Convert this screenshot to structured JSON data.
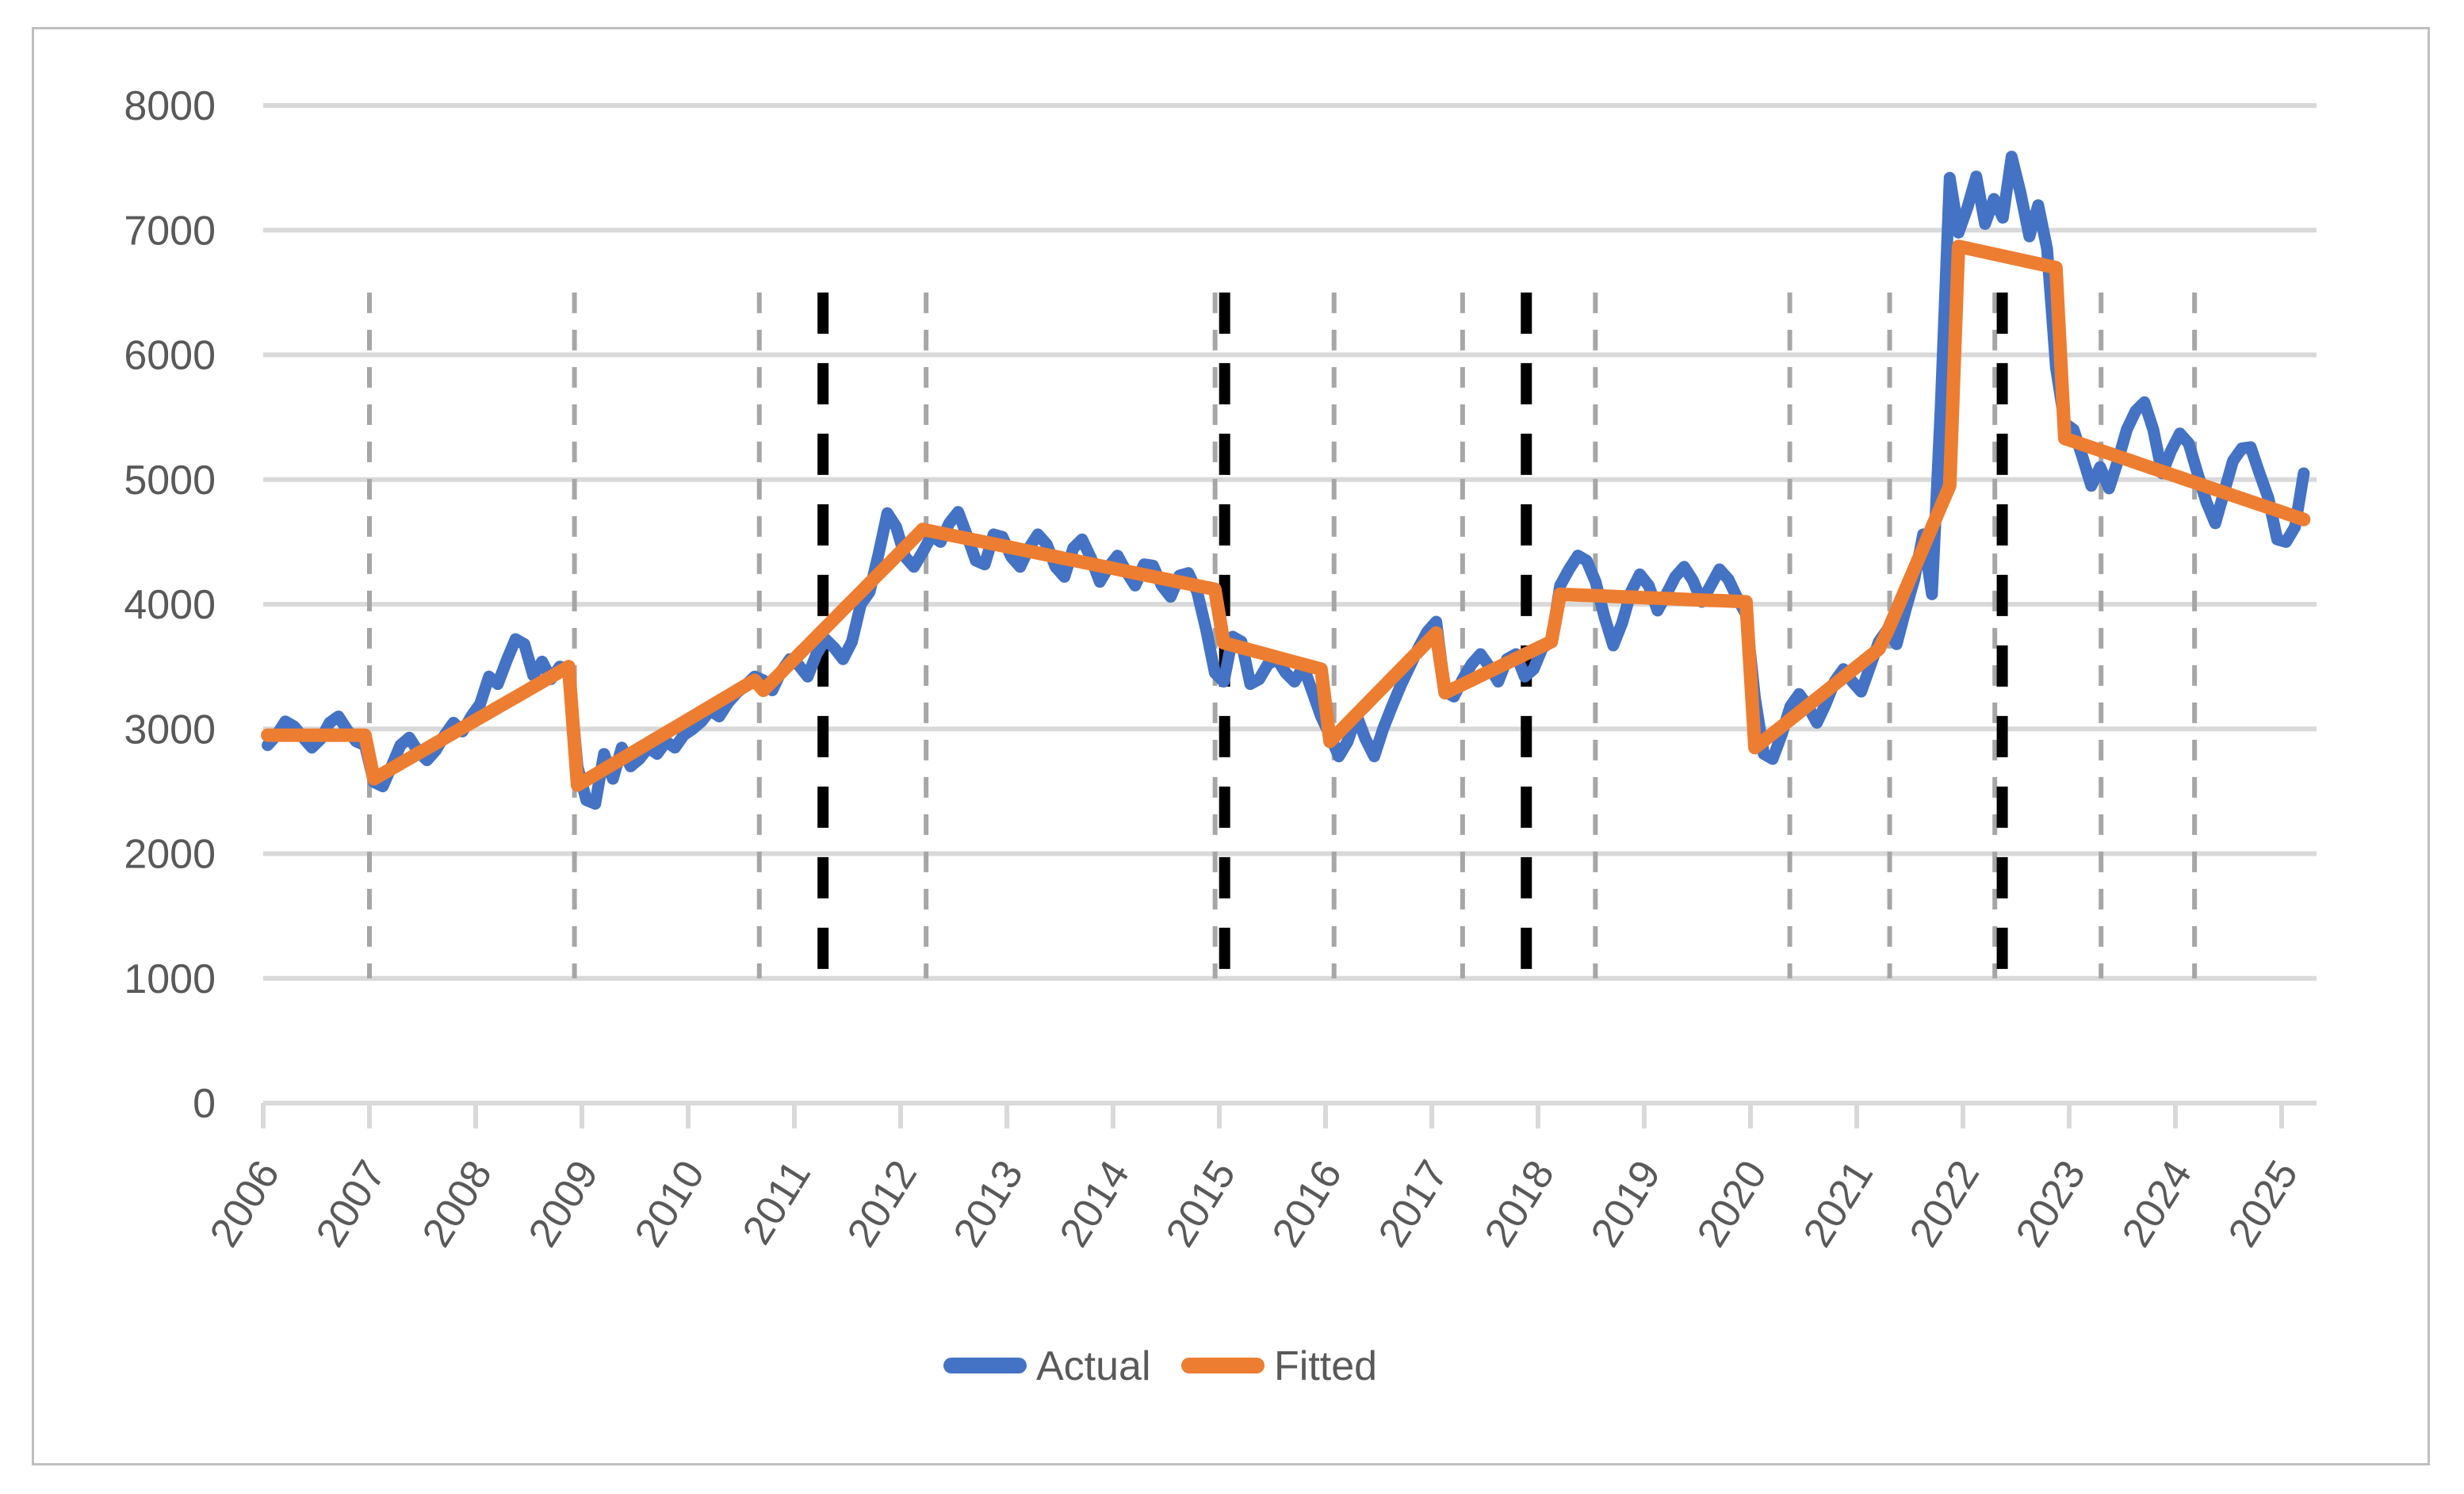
{
  "chart_data": {
    "type": "line",
    "title": "",
    "x_categories": [
      "2006",
      "2007",
      "2008",
      "2009",
      "2010",
      "2011",
      "2012",
      "2013",
      "2014",
      "2015",
      "2016",
      "2017",
      "2018",
      "2019",
      "2020",
      "2021",
      "2022",
      "2023",
      "2024",
      "2025"
    ],
    "x_start_year": 2006,
    "points_per_year": 12,
    "n_points": 231,
    "ylim": [
      0,
      8000
    ],
    "y_ticks": [
      0,
      1000,
      2000,
      3000,
      4000,
      5000,
      6000,
      7000,
      8000
    ],
    "grid": true,
    "legend_position": "bottom",
    "axis_label_color": "#595959",
    "gridline_color": "#d9d9d9",
    "series": [
      {
        "name": "Actual",
        "color": "#4472C4",
        "values": [
          2870,
          2950,
          3060,
          3020,
          2930,
          2850,
          2920,
          3050,
          3100,
          2990,
          2900,
          2870,
          2575,
          2540,
          2700,
          2870,
          2930,
          2820,
          2750,
          2830,
          2950,
          3050,
          2980,
          3100,
          3200,
          3420,
          3360,
          3550,
          3720,
          3680,
          3430,
          3540,
          3400,
          3500,
          3480,
          2700,
          2430,
          2400,
          2800,
          2600,
          2850,
          2700,
          2760,
          2850,
          2800,
          2900,
          2850,
          2950,
          3000,
          3060,
          3150,
          3100,
          3210,
          3290,
          3350,
          3420,
          3390,
          3310,
          3460,
          3560,
          3510,
          3420,
          3600,
          3720,
          3650,
          3560,
          3700,
          4000,
          4100,
          4400,
          4730,
          4620,
          4380,
          4300,
          4420,
          4550,
          4500,
          4650,
          4740,
          4550,
          4350,
          4320,
          4560,
          4540,
          4380,
          4300,
          4450,
          4560,
          4480,
          4300,
          4220,
          4450,
          4520,
          4370,
          4180,
          4300,
          4390,
          4260,
          4150,
          4320,
          4310,
          4150,
          4060,
          4230,
          4250,
          4100,
          3800,
          3450,
          3380,
          3740,
          3700,
          3360,
          3400,
          3520,
          3560,
          3450,
          3380,
          3500,
          3300,
          3100,
          2950,
          2780,
          2900,
          3110,
          2920,
          2780,
          3000,
          3180,
          3350,
          3500,
          3650,
          3780,
          3860,
          3300,
          3260,
          3400,
          3520,
          3600,
          3500,
          3380,
          3560,
          3600,
          3420,
          3480,
          3650,
          3700,
          4150,
          4280,
          4390,
          4350,
          4180,
          3900,
          3670,
          3850,
          4100,
          4240,
          4150,
          3950,
          4080,
          4220,
          4300,
          4190,
          4020,
          4150,
          4280,
          4200,
          4050,
          3920,
          3250,
          2800,
          2760,
          2950,
          3180,
          3280,
          3180,
          3050,
          3200,
          3380,
          3480,
          3380,
          3300,
          3500,
          3700,
          3800,
          3680,
          3950,
          4200,
          4560,
          4080,
          5600,
          7420,
          6980,
          7180,
          7430,
          7050,
          7250,
          7100,
          7590,
          7300,
          6950,
          7200,
          6850,
          5900,
          5450,
          5400,
          5180,
          4950,
          5100,
          4930,
          5150,
          5400,
          5550,
          5620,
          5400,
          5050,
          5230,
          5370,
          5290,
          5050,
          4820,
          4650,
          4900,
          5150,
          5250,
          5260,
          5050,
          4850,
          4520,
          4500,
          4620,
          5050
        ]
      },
      {
        "name": "Fitted",
        "color": "#ED7D31",
        "values": [
          2950,
          2950,
          2950,
          2950,
          2950,
          2950,
          2950,
          2950,
          2950,
          2950,
          2950,
          2950,
          2600,
          2641,
          2682,
          2723,
          2764,
          2805,
          2845,
          2886,
          2927,
          2968,
          3009,
          3050,
          3091,
          3132,
          3173,
          3214,
          3255,
          3295,
          3336,
          3377,
          3418,
          3459,
          3500,
          2550,
          2592,
          2634,
          2676,
          2718,
          2760,
          2802,
          2844,
          2886,
          2928,
          2970,
          3012,
          3054,
          3096,
          3138,
          3180,
          3222,
          3264,
          3306,
          3348,
          3390,
          3310,
          3382,
          3453,
          3525,
          3597,
          3668,
          3740,
          3812,
          3883,
          3955,
          4027,
          4098,
          4170,
          4242,
          4313,
          4385,
          4457,
          4528,
          4600,
          4585,
          4571,
          4556,
          4542,
          4527,
          4513,
          4498,
          4484,
          4469,
          4455,
          4440,
          4425,
          4411,
          4396,
          4382,
          4367,
          4353,
          4338,
          4324,
          4309,
          4295,
          4280,
          4265,
          4251,
          4236,
          4222,
          4207,
          4193,
          4178,
          4164,
          4149,
          4135,
          4120,
          3690,
          3671,
          3652,
          3633,
          3614,
          3595,
          3575,
          3556,
          3537,
          3518,
          3499,
          3480,
          2900,
          2973,
          3045,
          3118,
          3190,
          3263,
          3335,
          3408,
          3480,
          3553,
          3625,
          3698,
          3770,
          3290,
          3324,
          3358,
          3392,
          3427,
          3461,
          3495,
          3529,
          3563,
          3598,
          3632,
          3666,
          3700,
          4080,
          4077,
          4074,
          4071,
          4069,
          4066,
          4063,
          4060,
          4057,
          4054,
          4051,
          4049,
          4046,
          4043,
          4040,
          4037,
          4034,
          4031,
          4029,
          4026,
          4023,
          4020,
          2850,
          2906,
          2963,
          3019,
          3076,
          3132,
          3189,
          3245,
          3301,
          3358,
          3414,
          3471,
          3527,
          3584,
          3640,
          3786,
          3952,
          4119,
          4285,
          4451,
          4618,
          4784,
          4950,
          6870,
          6855,
          6839,
          6824,
          6808,
          6793,
          6777,
          6762,
          6746,
          6731,
          6715,
          6700,
          5330,
          5306,
          5282,
          5258,
          5234,
          5210,
          5186,
          5162,
          5137,
          5113,
          5089,
          5065,
          5041,
          5017,
          4993,
          4969,
          4945,
          4921,
          4897,
          4872,
          4848,
          4824,
          4800,
          4776,
          4752,
          4728,
          4704,
          4680
        ]
      }
    ],
    "break_lines": {
      "gray_dashed_years": [
        2007.0,
        2008.93,
        2010.67,
        2012.24,
        2014.96,
        2016.08,
        2017.29,
        2018.54,
        2020.37,
        2021.31,
        2022.3,
        2023.3,
        2024.18
      ],
      "black_dashed_years": [
        2011.27,
        2015.05,
        2017.89,
        2022.37
      ],
      "gray_color": "#a6a6a6",
      "black_color": "#000000",
      "span_values": [
        1000,
        6500
      ]
    }
  },
  "legend": {
    "actual_label": "Actual",
    "fitted_label": "Fitted"
  }
}
